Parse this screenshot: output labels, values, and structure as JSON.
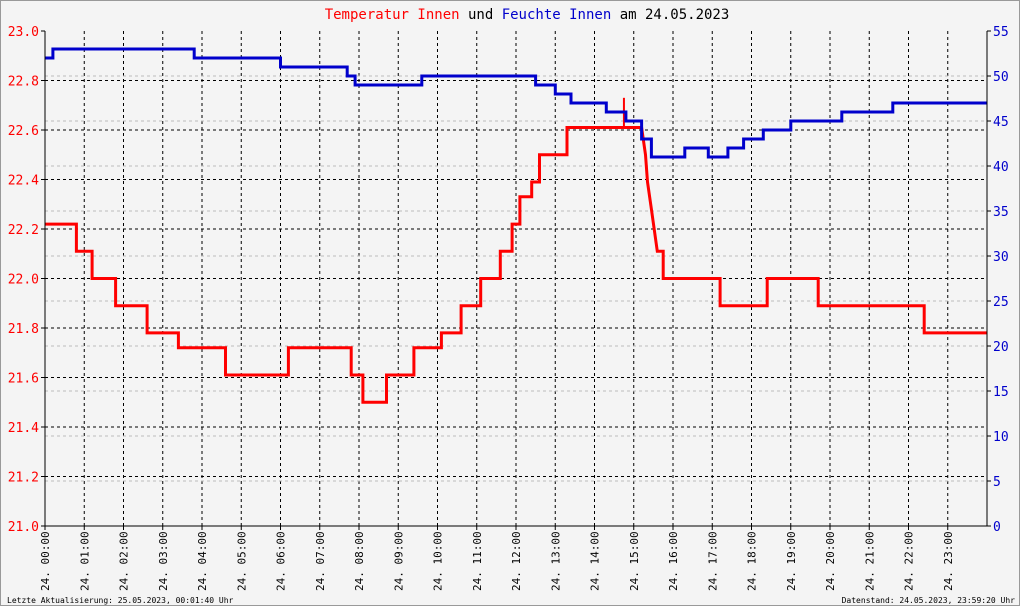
{
  "chart_data": {
    "type": "line",
    "title_parts": [
      {
        "text": "Temperatur Innen",
        "color": "#ff0000"
      },
      {
        "text": " und ",
        "color": "#000000"
      },
      {
        "text": "Feuchte Innen",
        "color": "#0000cc"
      },
      {
        "text": " am 24.05.2023",
        "color": "#000000"
      }
    ],
    "footer_left": "Letzte Aktualisierung: 25.05.2023, 00:01:40 Uhr",
    "footer_right": "Datenstand: 24.05.2023, 23:59:20 Uhr",
    "x_range_hours": [
      0,
      24
    ],
    "x_tick_labels": [
      "24. 00:00",
      "24. 01:00",
      "24. 02:00",
      "24. 03:00",
      "24. 04:00",
      "24. 05:00",
      "24. 06:00",
      "24. 07:00",
      "24. 08:00",
      "24. 09:00",
      "24. 10:00",
      "24. 11:00",
      "24. 12:00",
      "24. 13:00",
      "24. 14:00",
      "24. 15:00",
      "24. 16:00",
      "24. 17:00",
      "24. 18:00",
      "24. 19:00",
      "24. 20:00",
      "24. 21:00",
      "24. 22:00",
      "24. 23:00"
    ],
    "y_left": {
      "min": 21.0,
      "max": 23.0,
      "ticks": [
        "21.0",
        "21.2",
        "21.4",
        "21.6",
        "21.8",
        "22.0",
        "22.2",
        "22.4",
        "22.6",
        "22.8",
        "23.0"
      ],
      "color": "#ff0000"
    },
    "y_right": {
      "min": 0,
      "max": 55,
      "ticks": [
        "0",
        "5",
        "10",
        "15",
        "20",
        "25",
        "30",
        "35",
        "40",
        "45",
        "50",
        "55"
      ],
      "color": "#0000cc"
    },
    "grid": true,
    "series": [
      {
        "name": "Temperatur Innen",
        "axis": "left",
        "color": "#ff0000",
        "points": [
          [
            0,
            22.22
          ],
          [
            0.8,
            22.22
          ],
          [
            0.8,
            22.11
          ],
          [
            1.2,
            22.11
          ],
          [
            1.2,
            22.0
          ],
          [
            1.8,
            22.0
          ],
          [
            1.8,
            21.89
          ],
          [
            2.6,
            21.89
          ],
          [
            2.6,
            21.78
          ],
          [
            3.4,
            21.78
          ],
          [
            3.4,
            21.72
          ],
          [
            4.6,
            21.72
          ],
          [
            4.6,
            21.61
          ],
          [
            6.2,
            21.61
          ],
          [
            6.2,
            21.72
          ],
          [
            7.8,
            21.72
          ],
          [
            7.8,
            21.61
          ],
          [
            8.1,
            21.61
          ],
          [
            8.1,
            21.5
          ],
          [
            8.7,
            21.5
          ],
          [
            8.7,
            21.61
          ],
          [
            9.4,
            21.61
          ],
          [
            9.4,
            21.72
          ],
          [
            10.1,
            21.72
          ],
          [
            10.1,
            21.78
          ],
          [
            10.6,
            21.78
          ],
          [
            10.6,
            21.89
          ],
          [
            11.1,
            21.89
          ],
          [
            11.1,
            22.0
          ],
          [
            11.6,
            22.0
          ],
          [
            11.6,
            22.11
          ],
          [
            11.9,
            22.11
          ],
          [
            11.9,
            22.22
          ],
          [
            12.1,
            22.22
          ],
          [
            12.1,
            22.33
          ],
          [
            12.4,
            22.33
          ],
          [
            12.4,
            22.39
          ],
          [
            12.6,
            22.39
          ],
          [
            12.6,
            22.5
          ],
          [
            13.3,
            22.5
          ],
          [
            13.3,
            22.61
          ],
          [
            15.2,
            22.61
          ],
          [
            15.3,
            22.5
          ],
          [
            15.35,
            22.39
          ],
          [
            15.45,
            22.28
          ],
          [
            15.6,
            22.11
          ],
          [
            15.75,
            22.11
          ],
          [
            15.75,
            22.0
          ],
          [
            17.2,
            22.0
          ],
          [
            17.2,
            21.89
          ],
          [
            18.4,
            21.89
          ],
          [
            18.4,
            22.0
          ],
          [
            19.7,
            22.0
          ],
          [
            19.7,
            21.89
          ],
          [
            22.4,
            21.89
          ],
          [
            22.4,
            21.78
          ],
          [
            24,
            21.78
          ]
        ],
        "spikes": [
          [
            14.75,
            22.73
          ]
        ]
      },
      {
        "name": "Feuchte Innen",
        "axis": "right",
        "color": "#0000cc",
        "points": [
          [
            0,
            52
          ],
          [
            0.2,
            52
          ],
          [
            0.2,
            53
          ],
          [
            3.8,
            53
          ],
          [
            3.8,
            52
          ],
          [
            6,
            52
          ],
          [
            6,
            51
          ],
          [
            7.7,
            51
          ],
          [
            7.7,
            50
          ],
          [
            7.9,
            50
          ],
          [
            7.9,
            49
          ],
          [
            9.6,
            49
          ],
          [
            9.6,
            50
          ],
          [
            12.5,
            50
          ],
          [
            12.5,
            49
          ],
          [
            13,
            49
          ],
          [
            13,
            48
          ],
          [
            13.4,
            48
          ],
          [
            13.4,
            47
          ],
          [
            14.3,
            47
          ],
          [
            14.3,
            46
          ],
          [
            14.8,
            46
          ],
          [
            14.8,
            45
          ],
          [
            15.2,
            45
          ],
          [
            15.2,
            43
          ],
          [
            15.45,
            43
          ],
          [
            15.45,
            41
          ],
          [
            16.3,
            41
          ],
          [
            16.3,
            42
          ],
          [
            16.9,
            42
          ],
          [
            16.9,
            41
          ],
          [
            17.4,
            41
          ],
          [
            17.4,
            42
          ],
          [
            17.8,
            42
          ],
          [
            17.8,
            43
          ],
          [
            18.3,
            43
          ],
          [
            18.3,
            44
          ],
          [
            19,
            44
          ],
          [
            19,
            45
          ],
          [
            20.3,
            45
          ],
          [
            20.3,
            46
          ],
          [
            21.6,
            46
          ],
          [
            21.6,
            47
          ],
          [
            24,
            47
          ]
        ]
      }
    ]
  }
}
